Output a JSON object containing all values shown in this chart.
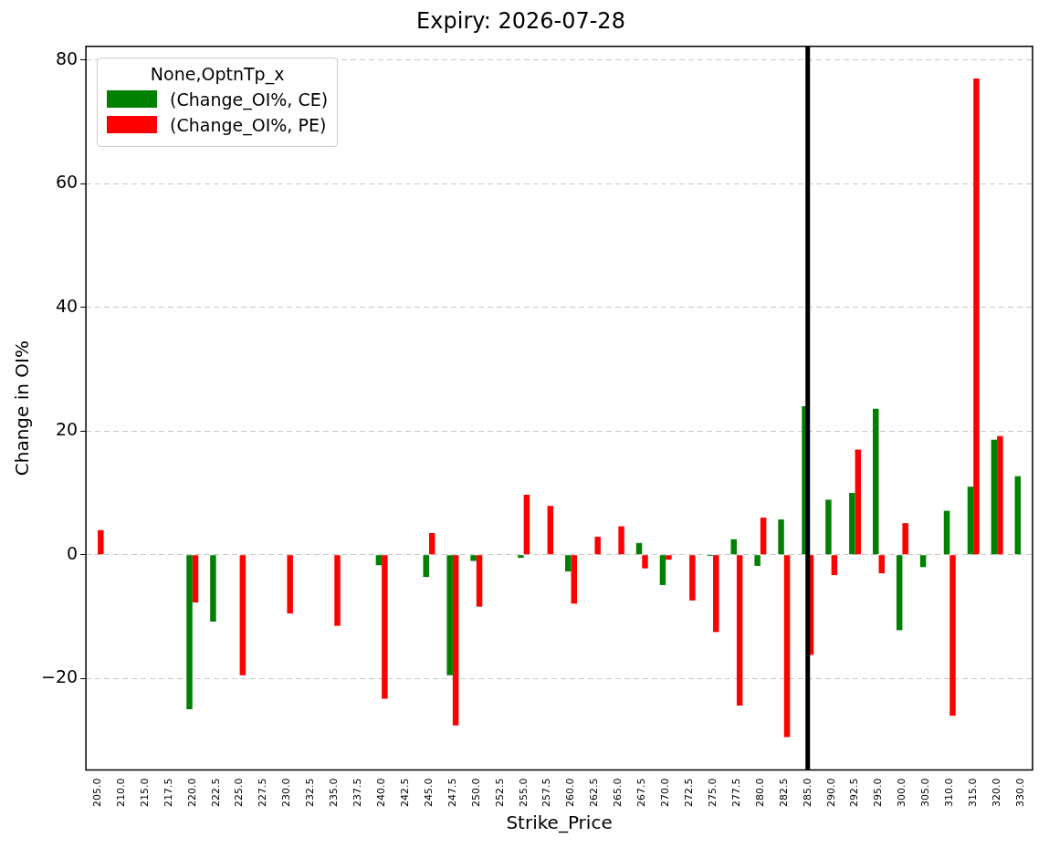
{
  "chart_data": {
    "type": "bar",
    "title": "Expiry: 2026-07-28",
    "xlabel": "Strike_Price",
    "ylabel": "Change in OI%",
    "legend_title": "None,OptnTp_x",
    "categories": [
      "205.0",
      "210.0",
      "215.0",
      "217.5",
      "220.0",
      "222.5",
      "225.0",
      "227.5",
      "230.0",
      "232.5",
      "235.0",
      "237.5",
      "240.0",
      "242.5",
      "245.0",
      "247.5",
      "250.0",
      "252.5",
      "255.0",
      "257.5",
      "260.0",
      "262.5",
      "265.0",
      "267.5",
      "270.0",
      "272.5",
      "275.0",
      "277.5",
      "280.0",
      "282.5",
      "285.0",
      "290.0",
      "292.5",
      "295.0",
      "300.0",
      "305.0",
      "310.0",
      "315.0",
      "320.0",
      "330.0"
    ],
    "series": [
      {
        "name": "(Change_OI%, CE)",
        "color": "#008000",
        "values": [
          null,
          null,
          null,
          null,
          -25,
          -10.8,
          null,
          null,
          null,
          null,
          null,
          null,
          -1.7,
          null,
          -3.6,
          -19.5,
          -1,
          null,
          -0.5,
          null,
          -2.7,
          null,
          null,
          1.9,
          -4.9,
          null,
          -0.2,
          2.5,
          -1.8,
          5.7,
          24,
          8.9,
          10,
          23.6,
          -12.2,
          -2,
          7.1,
          11,
          18.6,
          12.7
        ]
      },
      {
        "name": "(Change_OI%, PE)",
        "color": "#ff0000",
        "values": [
          4,
          null,
          null,
          null,
          -7.7,
          null,
          -19.5,
          null,
          -9.5,
          null,
          -11.5,
          null,
          -23.3,
          null,
          3.5,
          -27.6,
          -8.4,
          null,
          9.7,
          7.9,
          -7.9,
          2.9,
          4.6,
          -2.2,
          -0.8,
          -7.4,
          -12.5,
          -24.4,
          6,
          -29.5,
          -16.2,
          -3.3,
          17,
          -3,
          5.1,
          null,
          -26,
          77,
          19.2,
          null
        ]
      }
    ],
    "ylim": [
      -34.8,
      82.2
    ],
    "yticks": [
      {
        "value": -20,
        "label": "−20"
      },
      0,
      20,
      40,
      60,
      80
    ],
    "ref_lines": [
      {
        "axis": "x",
        "value": "285.0",
        "color": "#000000"
      }
    ],
    "grid": "y",
    "legend": "top left"
  }
}
